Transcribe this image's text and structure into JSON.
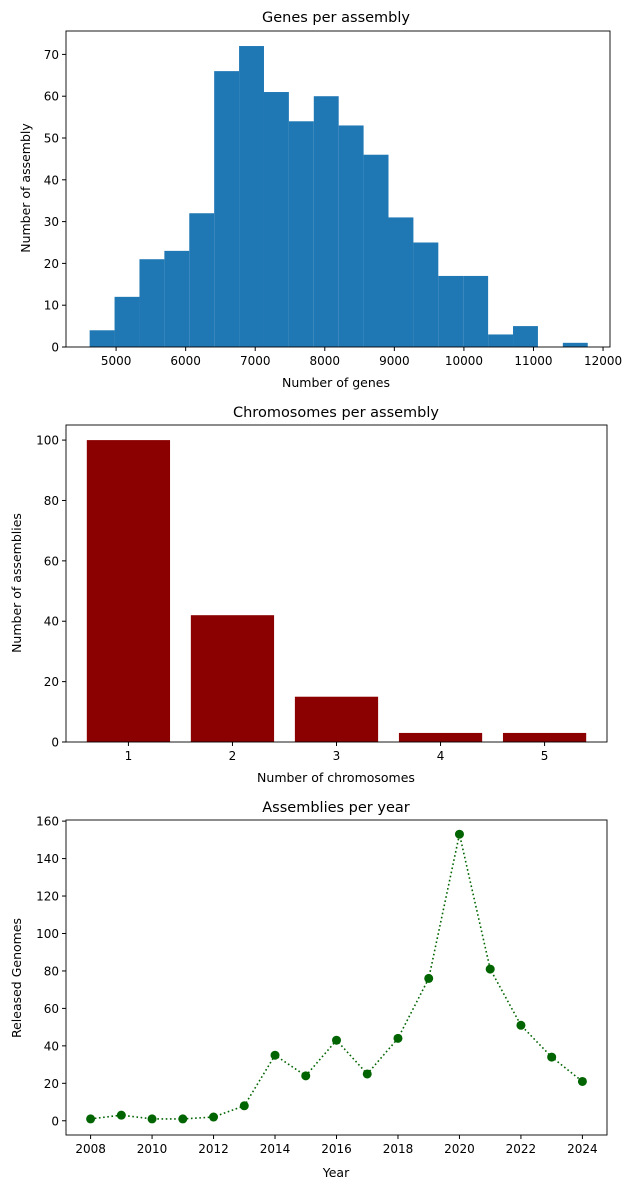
{
  "chart_data": [
    {
      "type": "bar",
      "subtype": "histogram",
      "title": "Genes per assembly",
      "xlabel": "Number of genes",
      "ylabel": "Number of assembly",
      "bin_start": 4620,
      "bin_width": 358,
      "values": [
        4,
        12,
        21,
        23,
        32,
        66,
        72,
        61,
        54,
        60,
        53,
        46,
        31,
        25,
        17,
        17,
        3,
        5,
        0,
        1
      ],
      "xlim": [
        4280,
        12100
      ],
      "ylim": [
        0,
        75.6
      ],
      "xticks": [
        5000,
        6000,
        7000,
        8000,
        9000,
        10000,
        11000,
        12000
      ],
      "yticks": [
        0,
        10,
        20,
        30,
        40,
        50,
        60,
        70
      ],
      "color": "#1f77b4"
    },
    {
      "type": "bar",
      "title": "Chromosomes per assembly",
      "xlabel": "Number of chromosomes",
      "ylabel": "Number of assemblies",
      "categories": [
        "1",
        "2",
        "3",
        "4",
        "5"
      ],
      "values": [
        100,
        42,
        15,
        3,
        3
      ],
      "xlim": [
        0.4,
        5.6
      ],
      "ylim": [
        0,
        105
      ],
      "yticks": [
        0,
        20,
        40,
        60,
        80,
        100
      ],
      "color": "#8b0000"
    },
    {
      "type": "line",
      "title": "Assemblies per year",
      "xlabel": "Year",
      "ylabel": "Released Genomes",
      "x": [
        2008,
        2009,
        2010,
        2011,
        2012,
        2013,
        2014,
        2015,
        2016,
        2017,
        2018,
        2019,
        2020,
        2021,
        2022,
        2023,
        2024
      ],
      "y": [
        1,
        3,
        1,
        1,
        2,
        8,
        35,
        24,
        43,
        25,
        44,
        76,
        153,
        81,
        51,
        34,
        21
      ],
      "xlim": [
        2007.2,
        2024.8
      ],
      "ylim": [
        -7.6,
        160.6
      ],
      "xticks": [
        2008,
        2010,
        2012,
        2014,
        2016,
        2018,
        2020,
        2022,
        2024
      ],
      "yticks": [
        0,
        20,
        40,
        60,
        80,
        100,
        120,
        140,
        160
      ],
      "color": "#006400",
      "linestyle": "dotted",
      "marker": "circle"
    }
  ]
}
